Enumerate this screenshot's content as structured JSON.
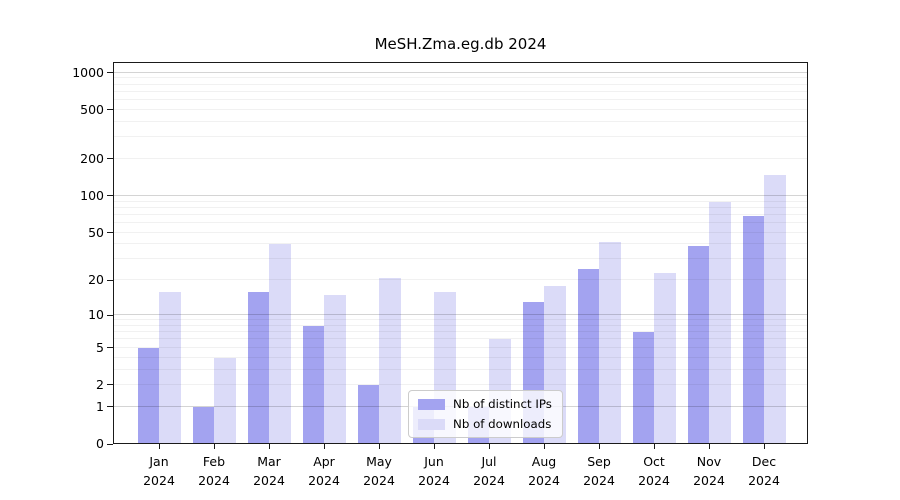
{
  "chart_data": {
    "type": "bar",
    "title": "MeSH.Zma.eg.db 2024",
    "x_months": [
      "Jan",
      "Feb",
      "Mar",
      "Apr",
      "May",
      "Jun",
      "Jul",
      "Aug",
      "Sep",
      "Oct",
      "Nov",
      "Dec"
    ],
    "x_year": "2024",
    "series": [
      {
        "name": "Nb of distinct IPs",
        "color": "#a3a3f0",
        "values": [
          5,
          1,
          16,
          8,
          2,
          1,
          1,
          13,
          25,
          7,
          39,
          68
        ]
      },
      {
        "name": "Nb of downloads",
        "color": "#dbdbf8",
        "values": [
          16,
          4,
          40,
          15,
          21,
          16,
          6,
          18,
          42,
          23,
          89,
          148
        ]
      }
    ],
    "y_scale": "log10(1+x)",
    "y_ticks": [
      0,
      1,
      2,
      5,
      10,
      20,
      50,
      100,
      200,
      500,
      1000
    ],
    "y_axis_top_value": 1200,
    "grid": true,
    "grid_major_at": [
      1,
      10,
      100,
      1000
    ],
    "legend_position": "inside-bottom-center"
  }
}
